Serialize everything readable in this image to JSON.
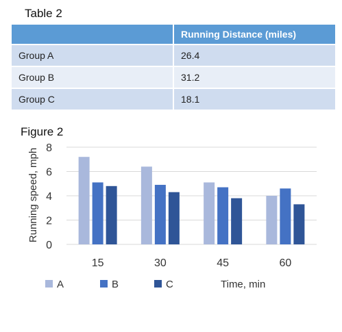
{
  "table": {
    "caption": "Table 2",
    "headers": [
      "",
      "Running  Distance (miles)"
    ],
    "rows": [
      [
        "Group A",
        "26.4"
      ],
      [
        "Group B",
        "31.2"
      ],
      [
        "Group C",
        "18.1"
      ]
    ]
  },
  "figure": {
    "caption": "Figure 2"
  },
  "chart_data": {
    "type": "bar",
    "categories": [
      "15",
      "30",
      "45",
      "60"
    ],
    "series": [
      {
        "name": "A",
        "values": [
          7.2,
          6.4,
          5.1,
          4.0
        ],
        "color": "#a9b8dc"
      },
      {
        "name": "B",
        "values": [
          5.1,
          4.9,
          4.7,
          4.6
        ],
        "color": "#4472c4"
      },
      {
        "name": "C",
        "values": [
          4.8,
          4.3,
          3.8,
          3.3
        ],
        "color": "#2f5597"
      }
    ],
    "xlabel": "Time, min",
    "ylabel": "Running speed,  mph",
    "ylim": [
      0,
      8
    ],
    "yticks": [
      0,
      2,
      4,
      6,
      8
    ],
    "grid": true,
    "legend_position": "bottom"
  }
}
